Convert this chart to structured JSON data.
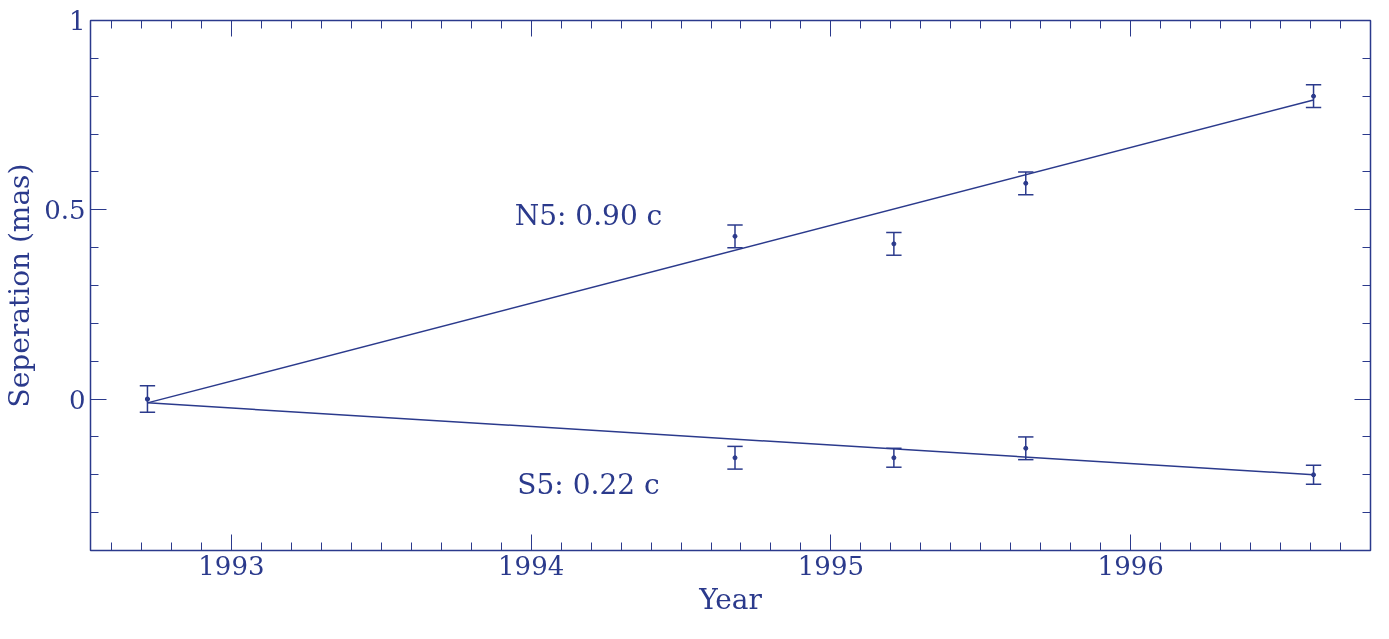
{
  "chart_data": {
    "type": "scatter",
    "xlabel": "Year",
    "ylabel": "Seperation (mas)",
    "grid": false,
    "xlim": [
      1992.53,
      1996.8
    ],
    "ylim": [
      -0.4,
      1
    ],
    "xticks": [
      1993,
      1994,
      1995,
      1996,
      {
        "value": 1992.6,
        "label": null
      },
      {
        "value": 1992.7,
        "label": null
      },
      {
        "value": 1992.8,
        "label": null
      },
      {
        "value": 1992.9,
        "label": null
      },
      {
        "value": 1993.1,
        "label": null
      },
      {
        "value": 1993.2,
        "label": null
      },
      {
        "value": 1993.3,
        "label": null
      },
      {
        "value": 1993.4,
        "label": null
      },
      {
        "value": 1993.5,
        "label": null
      },
      {
        "value": 1993.6,
        "label": null
      },
      {
        "value": 1993.7,
        "label": null
      },
      {
        "value": 1993.8,
        "label": null
      },
      {
        "value": 1993.9,
        "label": null
      },
      {
        "value": 1994.1,
        "label": null
      },
      {
        "value": 1994.2,
        "label": null
      },
      {
        "value": 1994.3,
        "label": null
      },
      {
        "value": 1994.4,
        "label": null
      },
      {
        "value": 1994.5,
        "label": null
      },
      {
        "value": 1994.6,
        "label": null
      },
      {
        "value": 1994.7,
        "label": null
      },
      {
        "value": 1994.8,
        "label": null
      },
      {
        "value": 1994.9,
        "label": null
      },
      {
        "value": 1995.1,
        "label": null
      },
      {
        "value": 1995.2,
        "label": null
      },
      {
        "value": 1995.3,
        "label": null
      },
      {
        "value": 1995.4,
        "label": null
      },
      {
        "value": 1995.5,
        "label": null
      },
      {
        "value": 1995.6,
        "label": null
      },
      {
        "value": 1995.7,
        "label": null
      },
      {
        "value": 1995.8,
        "label": null
      },
      {
        "value": 1995.9,
        "label": null
      },
      {
        "value": 1996.1,
        "label": null
      },
      {
        "value": 1996.2,
        "label": null
      },
      {
        "value": 1996.3,
        "label": null
      },
      {
        "value": 1996.4,
        "label": null
      },
      {
        "value": 1996.5,
        "label": null
      },
      {
        "value": 1996.6,
        "label": null
      },
      {
        "value": 1996.7,
        "label": null
      }
    ],
    "yticks": [
      0,
      0.5,
      1,
      {
        "value": -0.3,
        "label": null
      },
      {
        "value": -0.2,
        "label": null
      },
      {
        "value": -0.1,
        "label": null
      },
      {
        "value": 0.1,
        "label": null
      },
      {
        "value": 0.2,
        "label": null
      },
      {
        "value": 0.3,
        "label": null
      },
      {
        "value": 0.4,
        "label": null
      },
      {
        "value": 0.6,
        "label": null
      },
      {
        "value": 0.7,
        "label": null
      },
      {
        "value": 0.8,
        "label": null
      },
      {
        "value": 0.9,
        "label": null
      }
    ],
    "series": [
      {
        "color": "#2b3a8c",
        "marker": "circle",
        "x": [
          1992.72,
          1994.68,
          1995.21,
          1995.65,
          1996.61
        ],
        "values": [
          0,
          0.43,
          0.41,
          0.57,
          0.8
        ],
        "errors": [
          0.035,
          0.03,
          0.03,
          0.03,
          0.03
        ]
      },
      {
        "color": "#2b3a8c",
        "marker": "circle",
        "x": [
          1992.72,
          1994.68,
          1995.21,
          1995.65,
          1996.61
        ],
        "values": [
          0,
          -0.155,
          -0.155,
          -0.13,
          -0.2
        ],
        "errors": [
          null,
          0.03,
          0.025,
          0.03,
          0.025
        ]
      },
      {
        "type": "line",
        "color": "#2b3a8c",
        "x": [
          1992.72,
          1996.61
        ],
        "values": [
          -0.01,
          0.79
        ]
      },
      {
        "type": "line",
        "color": "#2b3a8c",
        "x": [
          1992.72,
          1996.61
        ],
        "values": [
          -0.01,
          -0.2
        ]
      }
    ],
    "annotations": [
      "N5: 0.90 c",
      "S5: 0.22 c"
    ]
  }
}
